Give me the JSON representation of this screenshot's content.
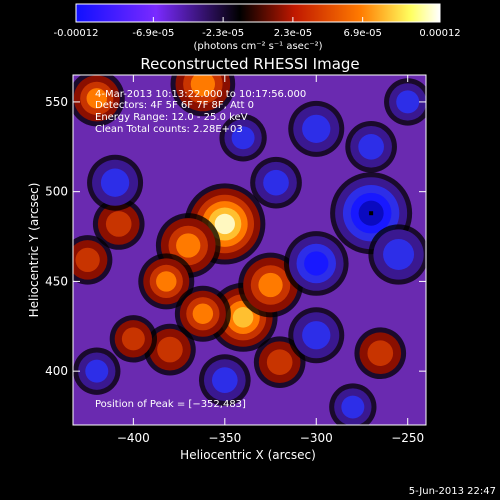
{
  "colorbar": {
    "ticks": [
      "-0.00012",
      "-6.9e-05",
      "-2.3e-05",
      "2.3e-05",
      "6.9e-05",
      "0.00012"
    ],
    "tick_values": [
      -0.00012,
      -6.9e-05,
      -2.3e-05,
      2.3e-05,
      6.9e-05,
      0.00012
    ],
    "range": [
      -0.00012,
      0.00012
    ],
    "unit_label": "(photons cm⁻² s⁻¹ asec⁻²)",
    "colors": [
      "#1010ff",
      "#7a2aff",
      "#000000",
      "#c01800",
      "#ff7a00",
      "#ffff60",
      "#ffffff"
    ]
  },
  "chart_data": {
    "type": "heatmap",
    "title": "Reconstructed RHESSI Image",
    "xlabel": "Heliocentric X (arcsec)",
    "ylabel": "Heliocentric Y (arcsec)",
    "xlim": [
      -433,
      -240
    ],
    "ylim": [
      370,
      565
    ],
    "x_ticks": [
      -400,
      -350,
      -300,
      -250
    ],
    "y_ticks": [
      400,
      450,
      500,
      550
    ],
    "x_tick_labels": [
      "−400",
      "−350",
      "−300",
      "−250"
    ],
    "y_tick_labels": [
      "400",
      "450",
      "500",
      "550"
    ],
    "annotations": [
      "4-Mar-2013 10:13:22.000 to 10:17:56.000",
      "Detectors: 4F 5F 6F 7F 8F, Att 0",
      "Energy Range: 12.0 - 25.0 keV",
      "Clean    Total counts: 2.28E+03"
    ],
    "peak_label": "Position of Peak = [−352,483]",
    "peak": [
      -352,
      483
    ],
    "sources": [
      {
        "x": -350,
        "y": 482,
        "value": 0.000118
      },
      {
        "x": -370,
        "y": 470,
        "value": 8e-05
      },
      {
        "x": -382,
        "y": 450,
        "value": 6e-05
      },
      {
        "x": -408,
        "y": 482,
        "value": 5e-05
      },
      {
        "x": -425,
        "y": 462,
        "value": 4.5e-05
      },
      {
        "x": -420,
        "y": 552,
        "value": 6e-05
      },
      {
        "x": -362,
        "y": 560,
        "value": 8e-05
      },
      {
        "x": -340,
        "y": 430,
        "value": 9e-05
      },
      {
        "x": -325,
        "y": 448,
        "value": 8e-05
      },
      {
        "x": -362,
        "y": 432,
        "value": 6e-05
      },
      {
        "x": -380,
        "y": 412,
        "value": 5e-05
      },
      {
        "x": -320,
        "y": 405,
        "value": 5e-05
      },
      {
        "x": -400,
        "y": 418,
        "value": 4e-05
      },
      {
        "x": -265,
        "y": 410,
        "value": 5e-05
      },
      {
        "x": -270,
        "y": 488,
        "value": -0.00012
      },
      {
        "x": -300,
        "y": 460,
        "value": -8e-05
      },
      {
        "x": -255,
        "y": 465,
        "value": -7e-05
      },
      {
        "x": -300,
        "y": 535,
        "value": -6e-05
      },
      {
        "x": -270,
        "y": 525,
        "value": -5e-05
      },
      {
        "x": -300,
        "y": 420,
        "value": -6e-05
      },
      {
        "x": -350,
        "y": 395,
        "value": -5e-05
      },
      {
        "x": -250,
        "y": 550,
        "value": -4e-05
      },
      {
        "x": -322,
        "y": 505,
        "value": -5e-05
      },
      {
        "x": -410,
        "y": 505,
        "value": -6e-05
      },
      {
        "x": -340,
        "y": 530,
        "value": -4e-05
      },
      {
        "x": -420,
        "y": 400,
        "value": -4e-05
      },
      {
        "x": -280,
        "y": 380,
        "value": -4e-05
      }
    ]
  },
  "footer": {
    "timestamp": "5-Jun-2013 22:47"
  }
}
